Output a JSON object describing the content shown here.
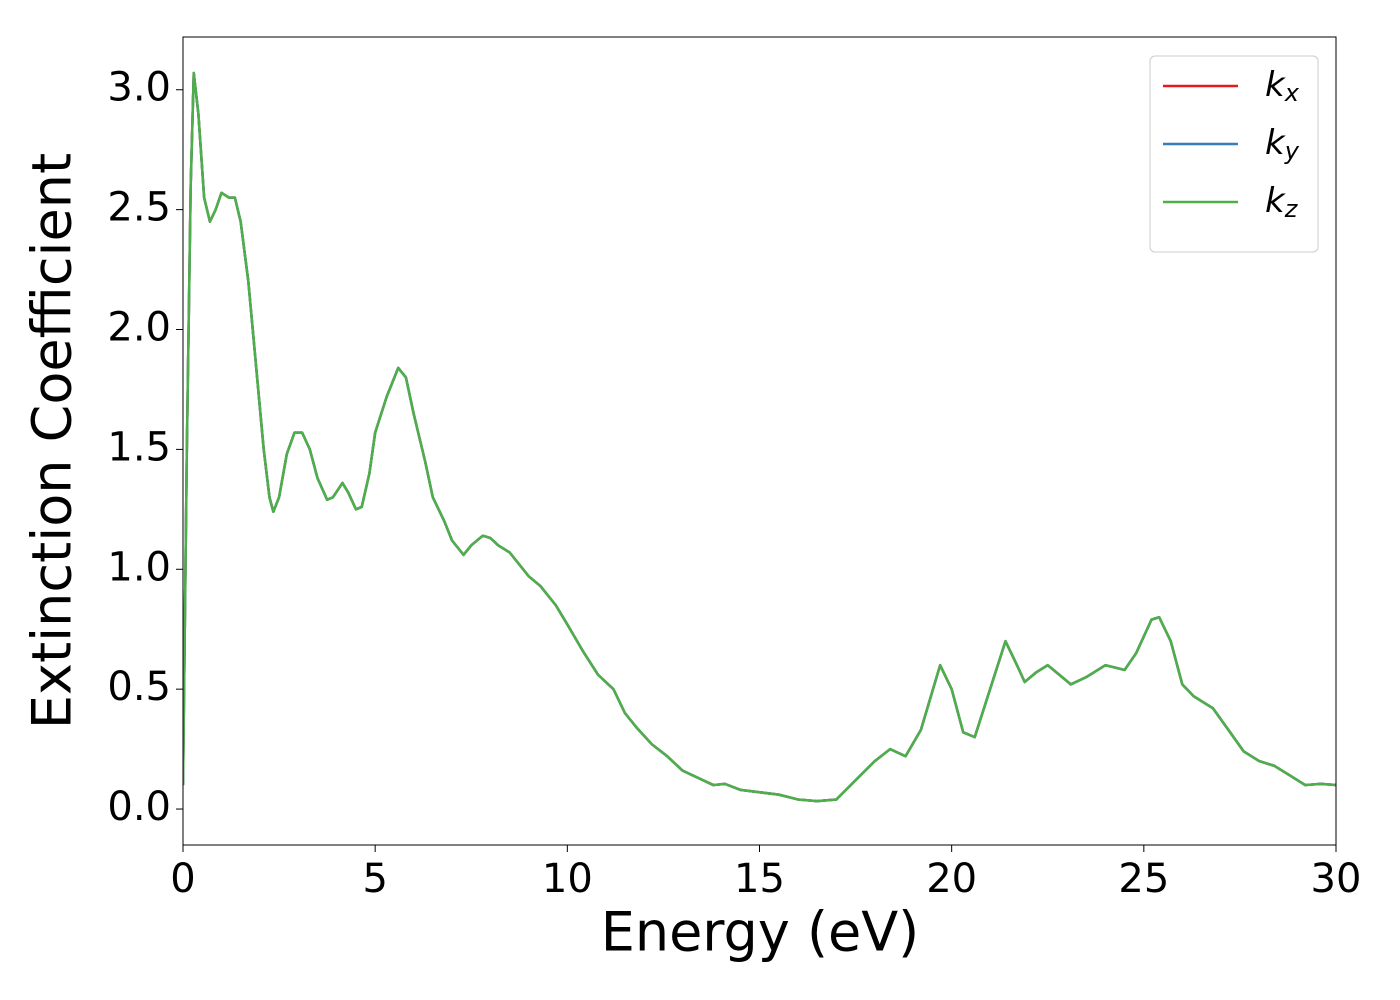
{
  "chart_data": {
    "type": "line",
    "x_label": "Energy (eV)",
    "y_label": "Extinction Coefficient",
    "x": [
      0.0,
      0.1,
      0.2,
      0.28,
      0.4,
      0.55,
      0.7,
      0.85,
      1.0,
      1.2,
      1.35,
      1.5,
      1.7,
      1.9,
      2.1,
      2.25,
      2.35,
      2.5,
      2.7,
      2.9,
      3.1,
      3.3,
      3.5,
      3.75,
      3.9,
      4.15,
      4.3,
      4.5,
      4.65,
      4.85,
      5.0,
      5.3,
      5.6,
      5.8,
      6.0,
      6.3,
      6.5,
      6.8,
      7.0,
      7.3,
      7.5,
      7.8,
      8.0,
      8.2,
      8.5,
      8.8,
      9.0,
      9.3,
      9.7,
      10.0,
      10.4,
      10.8,
      11.2,
      11.5,
      11.8,
      12.2,
      12.6,
      13.0,
      13.4,
      13.8,
      14.1,
      14.5,
      15.0,
      15.5,
      16.0,
      16.5,
      17.0,
      17.5,
      18.0,
      18.4,
      18.8,
      19.2,
      19.7,
      20.0,
      20.3,
      20.6,
      21.0,
      21.4,
      21.7,
      21.9,
      22.2,
      22.5,
      22.8,
      23.1,
      23.5,
      24.0,
      24.5,
      24.8,
      25.2,
      25.4,
      25.7,
      26.0,
      26.3,
      26.8,
      27.2,
      27.6,
      28.0,
      28.4,
      28.8,
      29.2,
      29.6,
      30.0
    ],
    "series": [
      {
        "name": "kx",
        "color": "#e41a1c",
        "values": [
          0.1,
          1.5,
          2.6,
          3.07,
          2.9,
          2.55,
          2.45,
          2.5,
          2.57,
          2.55,
          2.55,
          2.45,
          2.2,
          1.85,
          1.5,
          1.3,
          1.24,
          1.3,
          1.48,
          1.57,
          1.57,
          1.5,
          1.38,
          1.29,
          1.3,
          1.36,
          1.32,
          1.25,
          1.26,
          1.4,
          1.57,
          1.72,
          1.84,
          1.8,
          1.65,
          1.45,
          1.3,
          1.2,
          1.12,
          1.06,
          1.1,
          1.14,
          1.13,
          1.1,
          1.07,
          1.01,
          0.97,
          0.93,
          0.85,
          0.77,
          0.66,
          0.56,
          0.5,
          0.4,
          0.34,
          0.27,
          0.22,
          0.16,
          0.13,
          0.1,
          0.105,
          0.08,
          0.07,
          0.06,
          0.04,
          0.033,
          0.04,
          0.12,
          0.2,
          0.25,
          0.22,
          0.33,
          0.6,
          0.5,
          0.32,
          0.3,
          0.5,
          0.7,
          0.6,
          0.53,
          0.57,
          0.6,
          0.56,
          0.52,
          0.55,
          0.6,
          0.58,
          0.65,
          0.79,
          0.8,
          0.7,
          0.52,
          0.47,
          0.42,
          0.33,
          0.24,
          0.2,
          0.18,
          0.14,
          0.1,
          0.105,
          0.1
        ]
      },
      {
        "name": "ky",
        "color": "#377eb8",
        "values": [
          0.1,
          1.5,
          2.6,
          3.07,
          2.9,
          2.55,
          2.45,
          2.5,
          2.57,
          2.55,
          2.55,
          2.45,
          2.2,
          1.85,
          1.5,
          1.3,
          1.24,
          1.3,
          1.48,
          1.57,
          1.57,
          1.5,
          1.38,
          1.29,
          1.3,
          1.36,
          1.32,
          1.25,
          1.26,
          1.4,
          1.57,
          1.72,
          1.84,
          1.8,
          1.65,
          1.45,
          1.3,
          1.2,
          1.12,
          1.06,
          1.1,
          1.14,
          1.13,
          1.1,
          1.07,
          1.01,
          0.97,
          0.93,
          0.85,
          0.77,
          0.66,
          0.56,
          0.5,
          0.4,
          0.34,
          0.27,
          0.22,
          0.16,
          0.13,
          0.1,
          0.105,
          0.08,
          0.07,
          0.06,
          0.04,
          0.033,
          0.04,
          0.12,
          0.2,
          0.25,
          0.22,
          0.33,
          0.6,
          0.5,
          0.32,
          0.3,
          0.5,
          0.7,
          0.6,
          0.53,
          0.57,
          0.6,
          0.56,
          0.52,
          0.55,
          0.6,
          0.58,
          0.65,
          0.79,
          0.8,
          0.7,
          0.52,
          0.47,
          0.42,
          0.33,
          0.24,
          0.2,
          0.18,
          0.14,
          0.1,
          0.105,
          0.1
        ]
      },
      {
        "name": "kz",
        "color": "#4daf4a",
        "values": [
          0.1,
          1.5,
          2.6,
          3.07,
          2.9,
          2.55,
          2.45,
          2.5,
          2.57,
          2.55,
          2.55,
          2.45,
          2.2,
          1.85,
          1.5,
          1.3,
          1.24,
          1.3,
          1.48,
          1.57,
          1.57,
          1.5,
          1.38,
          1.29,
          1.3,
          1.36,
          1.32,
          1.25,
          1.26,
          1.4,
          1.57,
          1.72,
          1.84,
          1.8,
          1.65,
          1.45,
          1.3,
          1.2,
          1.12,
          1.06,
          1.1,
          1.14,
          1.13,
          1.1,
          1.07,
          1.01,
          0.97,
          0.93,
          0.85,
          0.77,
          0.66,
          0.56,
          0.5,
          0.4,
          0.34,
          0.27,
          0.22,
          0.16,
          0.13,
          0.1,
          0.105,
          0.08,
          0.07,
          0.06,
          0.04,
          0.033,
          0.04,
          0.12,
          0.2,
          0.25,
          0.22,
          0.33,
          0.6,
          0.5,
          0.32,
          0.3,
          0.5,
          0.7,
          0.6,
          0.53,
          0.57,
          0.6,
          0.56,
          0.52,
          0.55,
          0.6,
          0.58,
          0.65,
          0.79,
          0.8,
          0.7,
          0.52,
          0.47,
          0.42,
          0.33,
          0.24,
          0.2,
          0.18,
          0.14,
          0.1,
          0.105,
          0.1
        ]
      }
    ],
    "xlim": [
      0,
      30
    ],
    "xticks": [
      0,
      5,
      10,
      15,
      20,
      25,
      30
    ],
    "ylim": [
      -0.15,
      3.22
    ],
    "yticks": [
      {
        "value": 0,
        "label": "0.0"
      },
      0.5,
      {
        "value": 1,
        "label": "1.0"
      },
      1.5,
      {
        "value": 2,
        "label": "2.0"
      },
      2.5,
      {
        "value": 3,
        "label": "3.0"
      }
    ],
    "grid": false,
    "legend": "upper right"
  }
}
